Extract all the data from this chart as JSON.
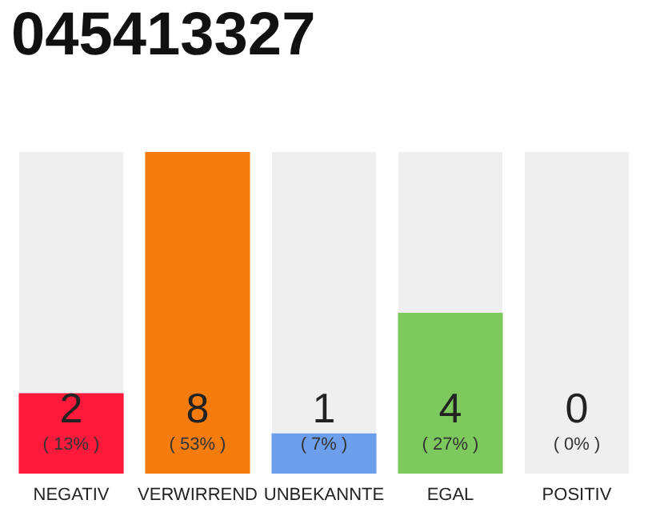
{
  "chart_data": {
    "type": "bar",
    "title": "045413327",
    "categories": [
      "NEGATIV",
      "VERWIRREND",
      "UNBEKANNTE",
      "EGAL",
      "POSITIV"
    ],
    "values": [
      2,
      8,
      1,
      4,
      0
    ],
    "colors": [
      "#ff1a3c",
      "#f47c0c",
      "#6d9eeb",
      "#7dc95e",
      "#dddddd"
    ],
    "value_labels": [
      "2\n( 13% )",
      "8\n( 53% )",
      "1\n( 7% )",
      "4\n( 27% )",
      "0\n( 0% )"
    ],
    "grid": false
  }
}
